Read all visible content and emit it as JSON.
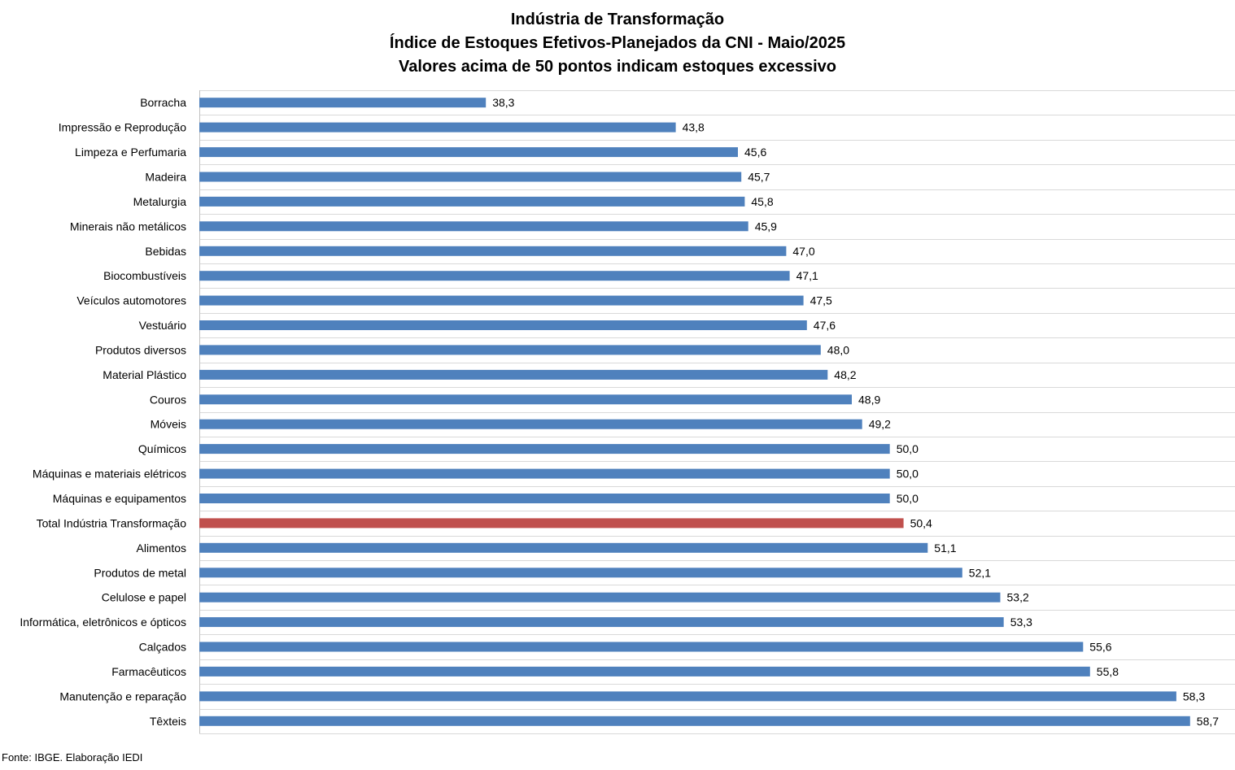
{
  "chart_data": {
    "type": "bar",
    "orientation": "horizontal",
    "title": "Indústria de Transformação",
    "subtitle": "Índice de Estoques Efetivos-Planejados da CNI - Maio/2025",
    "subtitle2": "Valores acima de 50 pontos indicam estoques excessivo",
    "categories": [
      "Borracha",
      "Impressão e Reprodução",
      "Limpeza e Perfumaria",
      "Madeira",
      "Metalurgia",
      "Minerais não metálicos",
      "Bebidas",
      "Biocombustíveis",
      "Veículos automotores",
      "Vestuário",
      "Produtos diversos",
      "Material Plástico",
      "Couros",
      "Móveis",
      "Químicos",
      "Máquinas e materiais elétricos",
      "Máquinas e equipamentos",
      "Total Indústria Transformação",
      "Alimentos",
      "Produtos de metal",
      "Celulose e papel",
      "Informática, eletrônicos e ópticos",
      "Calçados",
      "Farmacêuticos",
      "Manutenção e reparação",
      "Têxteis"
    ],
    "values": [
      38.3,
      43.8,
      45.6,
      45.7,
      45.8,
      45.9,
      47.0,
      47.1,
      47.5,
      47.6,
      48.0,
      48.2,
      48.9,
      49.2,
      50.0,
      50.0,
      50.0,
      50.4,
      51.1,
      52.1,
      53.2,
      53.3,
      55.6,
      55.8,
      58.3,
      58.7
    ],
    "value_labels": [
      "38,3",
      "43,8",
      "45,6",
      "45,7",
      "45,8",
      "45,9",
      "47,0",
      "47,1",
      "47,5",
      "47,6",
      "48,0",
      "48,2",
      "48,9",
      "49,2",
      "50,0",
      "50,0",
      "50,0",
      "50,4",
      "51,1",
      "52,1",
      "53,2",
      "53,3",
      "55,6",
      "55,8",
      "58,3",
      "58,7"
    ],
    "highlight_category": "Total Indústria Transformação",
    "colors": {
      "bar": "#4F81BD",
      "highlight": "#C0504D",
      "grid": "#D9D9D9",
      "axis": "#BFBFBF"
    },
    "xlim": [
      30,
      60
    ],
    "grid": true,
    "legend": "none"
  },
  "source": "Fonte: IBGE. Elaboração IEDI"
}
